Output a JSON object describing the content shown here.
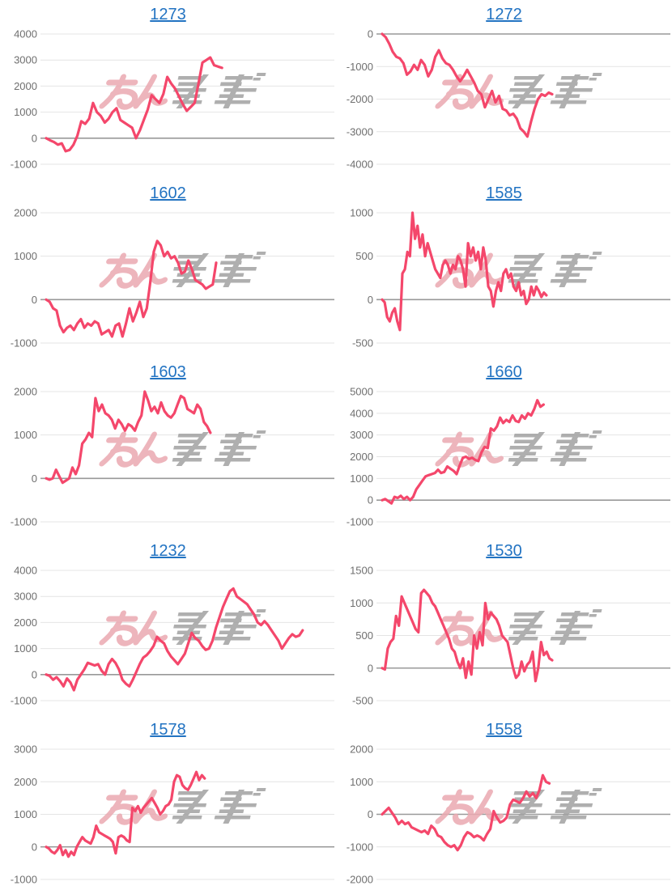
{
  "page": {
    "background": "#ffffff",
    "grid_columns": 2,
    "grid_rows": 5
  },
  "style": {
    "line_color": "#f4476b",
    "title_color": "#2273c2",
    "tick_color": "#6f6f6f",
    "grid_color": "#e4e4e4",
    "zero_color": "#999999",
    "watermark_pink": "#eba9b1",
    "watermark_gray": "#a2a2a2"
  },
  "watermark": {
    "name": "minrepo-logo-watermark",
    "text_hint": "みんレポ"
  },
  "chart_data": [
    {
      "type": "line",
      "title": "1273",
      "xlabel": "",
      "ylabel": "",
      "x": "game-index",
      "ylim": [
        -1000,
        4000
      ],
      "ytick_step": 1000,
      "span": 0.61,
      "values": [
        0,
        -80,
        -150,
        -250,
        -200,
        -500,
        -450,
        -250,
        100,
        650,
        550,
        750,
        1350,
        1000,
        850,
        600,
        750,
        1000,
        1150,
        700,
        600,
        500,
        400,
        0,
        300,
        700,
        1100,
        1650,
        1500,
        1350,
        1700,
        2350,
        2100,
        1900,
        1600,
        1300,
        1050,
        1200,
        1350,
        2100,
        2900,
        3000,
        3100,
        2800,
        2750,
        2700
      ]
    },
    {
      "type": "line",
      "title": "1272",
      "xlabel": "",
      "ylabel": "",
      "x": "game-index",
      "ylim": [
        -4000,
        0
      ],
      "ytick_step": 1000,
      "span": 0.59,
      "values": [
        0,
        -100,
        -300,
        -550,
        -700,
        -750,
        -900,
        -1250,
        -1150,
        -950,
        -1100,
        -800,
        -950,
        -1300,
        -1100,
        -700,
        -500,
        -750,
        -900,
        -950,
        -1100,
        -1300,
        -1450,
        -1300,
        -1100,
        -1300,
        -1500,
        -1750,
        -1850,
        -2250,
        -2000,
        -1750,
        -2100,
        -1900,
        -2300,
        -2350,
        -2500,
        -2450,
        -2600,
        -2900,
        -3000,
        -3150,
        -2700,
        -2300,
        -2000,
        -1850,
        -1900,
        -1800,
        -1850
      ]
    },
    {
      "type": "line",
      "title": "1602",
      "xlabel": "",
      "ylabel": "",
      "x": "game-index",
      "ylim": [
        -1000,
        2000
      ],
      "ytick_step": 1000,
      "span": 0.59,
      "values": [
        0,
        -50,
        -200,
        -250,
        -600,
        -750,
        -650,
        -600,
        -700,
        -550,
        -450,
        -650,
        -550,
        -600,
        -500,
        -550,
        -800,
        -750,
        -700,
        -850,
        -600,
        -550,
        -850,
        -550,
        -200,
        -500,
        -300,
        -50,
        -400,
        -200,
        400,
        1100,
        1350,
        1250,
        1000,
        1100,
        950,
        1000,
        850,
        600,
        650,
        900,
        700,
        450,
        400,
        350,
        250,
        300,
        350,
        850
      ]
    },
    {
      "type": "line",
      "title": "1585",
      "xlabel": "",
      "ylabel": "",
      "x": "game-index",
      "ylim": [
        -500,
        1000
      ],
      "ytick_step": 500,
      "span": 0.57,
      "values": [
        0,
        -30,
        -200,
        -250,
        -150,
        -100,
        -250,
        -350,
        300,
        350,
        550,
        500,
        1000,
        700,
        850,
        600,
        750,
        500,
        650,
        550,
        450,
        350,
        300,
        250,
        400,
        450,
        400,
        300,
        400,
        350,
        500,
        450,
        350,
        150,
        650,
        500,
        600,
        450,
        550,
        350,
        600,
        450,
        150,
        100,
        -80,
        100,
        200,
        100,
        300,
        350,
        250,
        300,
        150,
        100,
        200,
        50,
        100,
        -50,
        0,
        150,
        50,
        150,
        100,
        30,
        80,
        50
      ]
    },
    {
      "type": "line",
      "title": "1603",
      "xlabel": "",
      "ylabel": "",
      "x": "game-index",
      "ylim": [
        -1000,
        2000
      ],
      "ytick_step": 1000,
      "span": 0.57,
      "values": [
        0,
        -30,
        0,
        200,
        50,
        -100,
        -50,
        0,
        250,
        100,
        300,
        800,
        900,
        1050,
        950,
        1850,
        1550,
        1700,
        1500,
        1450,
        1350,
        1150,
        1350,
        1250,
        1100,
        1250,
        1200,
        1100,
        1300,
        1450,
        2000,
        1800,
        1550,
        1650,
        1500,
        1750,
        1550,
        1450,
        1400,
        1500,
        1700,
        1900,
        1850,
        1600,
        1550,
        1500,
        1700,
        1600,
        1300,
        1200,
        1050
      ]
    },
    {
      "type": "line",
      "title": "1660",
      "xlabel": "",
      "ylabel": "",
      "x": "game-index",
      "ylim": [
        -1000,
        5000
      ],
      "ytick_step": 1000,
      "span": 0.56,
      "values": [
        0,
        50,
        -50,
        -150,
        150,
        100,
        200,
        50,
        150,
        0,
        150,
        500,
        700,
        900,
        1100,
        1150,
        1200,
        1250,
        1400,
        1250,
        1300,
        1550,
        1450,
        1350,
        1200,
        1600,
        1950,
        2000,
        1900,
        1950,
        1850,
        1800,
        2200,
        2450,
        2400,
        3300,
        3200,
        3400,
        3800,
        3550,
        3700,
        3600,
        3900,
        3650,
        3600,
        3900,
        3750,
        4000,
        3900,
        4200,
        4600,
        4300,
        4400
      ]
    },
    {
      "type": "line",
      "title": "1232",
      "xlabel": "",
      "ylabel": "",
      "x": "game-index",
      "ylim": [
        -1000,
        4000
      ],
      "ytick_step": 1000,
      "span": 0.89,
      "values": [
        0,
        -50,
        -200,
        -100,
        -250,
        -450,
        -150,
        -300,
        -600,
        -200,
        0,
        200,
        450,
        400,
        350,
        400,
        150,
        0,
        400,
        600,
        450,
        200,
        -200,
        -350,
        -450,
        -200,
        100,
        400,
        650,
        750,
        900,
        1100,
        1450,
        1300,
        1200,
        900,
        700,
        550,
        400,
        600,
        800,
        1200,
        1600,
        1400,
        1300,
        1100,
        950,
        1000,
        1300,
        1800,
        2200,
        2600,
        2900,
        3200,
        3300,
        3000,
        2900,
        2800,
        2700,
        2500,
        2300,
        2000,
        1900,
        2050,
        1900,
        1700,
        1500,
        1300,
        1000,
        1200,
        1400,
        1550,
        1450,
        1500,
        1700
      ]
    },
    {
      "type": "line",
      "title": "1530",
      "xlabel": "",
      "ylabel": "",
      "x": "game-index",
      "ylim": [
        -500,
        1500
      ],
      "ytick_step": 500,
      "span": 0.59,
      "values": [
        0,
        -20,
        300,
        400,
        450,
        800,
        650,
        1100,
        1000,
        900,
        800,
        700,
        600,
        550,
        1150,
        1200,
        1150,
        1100,
        1000,
        950,
        850,
        750,
        650,
        550,
        450,
        300,
        250,
        100,
        0,
        150,
        -150,
        100,
        -100,
        500,
        300,
        550,
        350,
        1000,
        750,
        850,
        800,
        750,
        650,
        500,
        450,
        400,
        200,
        0,
        -150,
        -100,
        100,
        -50,
        50,
        100,
        250,
        -200,
        0,
        400,
        200,
        250,
        150,
        120
      ]
    },
    {
      "type": "line",
      "title": "1578",
      "xlabel": "",
      "ylabel": "",
      "x": "game-index",
      "ylim": [
        -1000,
        3000
      ],
      "ytick_step": 1000,
      "span": 0.55,
      "values": [
        0,
        -50,
        -150,
        -200,
        -100,
        50,
        -250,
        -100,
        -300,
        -150,
        -250,
        0,
        150,
        300,
        200,
        150,
        100,
        300,
        650,
        450,
        400,
        350,
        300,
        250,
        150,
        -200,
        300,
        350,
        300,
        200,
        150,
        1200,
        1100,
        1250,
        1050,
        1200,
        1300,
        1400,
        1500,
        1350,
        1200,
        1000,
        1100,
        1250,
        1300,
        1450,
        2000,
        2200,
        2150,
        1900,
        1800,
        1750,
        1900,
        2100,
        2300,
        2050,
        2200,
        2100
      ]
    },
    {
      "type": "line",
      "title": "1558",
      "xlabel": "",
      "ylabel": "",
      "x": "game-index",
      "ylim": [
        -2000,
        2000
      ],
      "ytick_step": 1000,
      "span": 0.58,
      "values": [
        0,
        100,
        200,
        50,
        -100,
        -300,
        -200,
        -300,
        -250,
        -400,
        -450,
        -500,
        -550,
        -500,
        -600,
        -350,
        -450,
        -650,
        -700,
        -850,
        -950,
        -1000,
        -950,
        -1100,
        -950,
        -700,
        -550,
        -600,
        -700,
        -650,
        -700,
        -800,
        -600,
        -450,
        100,
        -100,
        -250,
        -200,
        -100,
        300,
        450,
        400,
        350,
        500,
        700,
        550,
        650,
        500,
        750,
        1200,
        1000,
        950
      ]
    }
  ]
}
